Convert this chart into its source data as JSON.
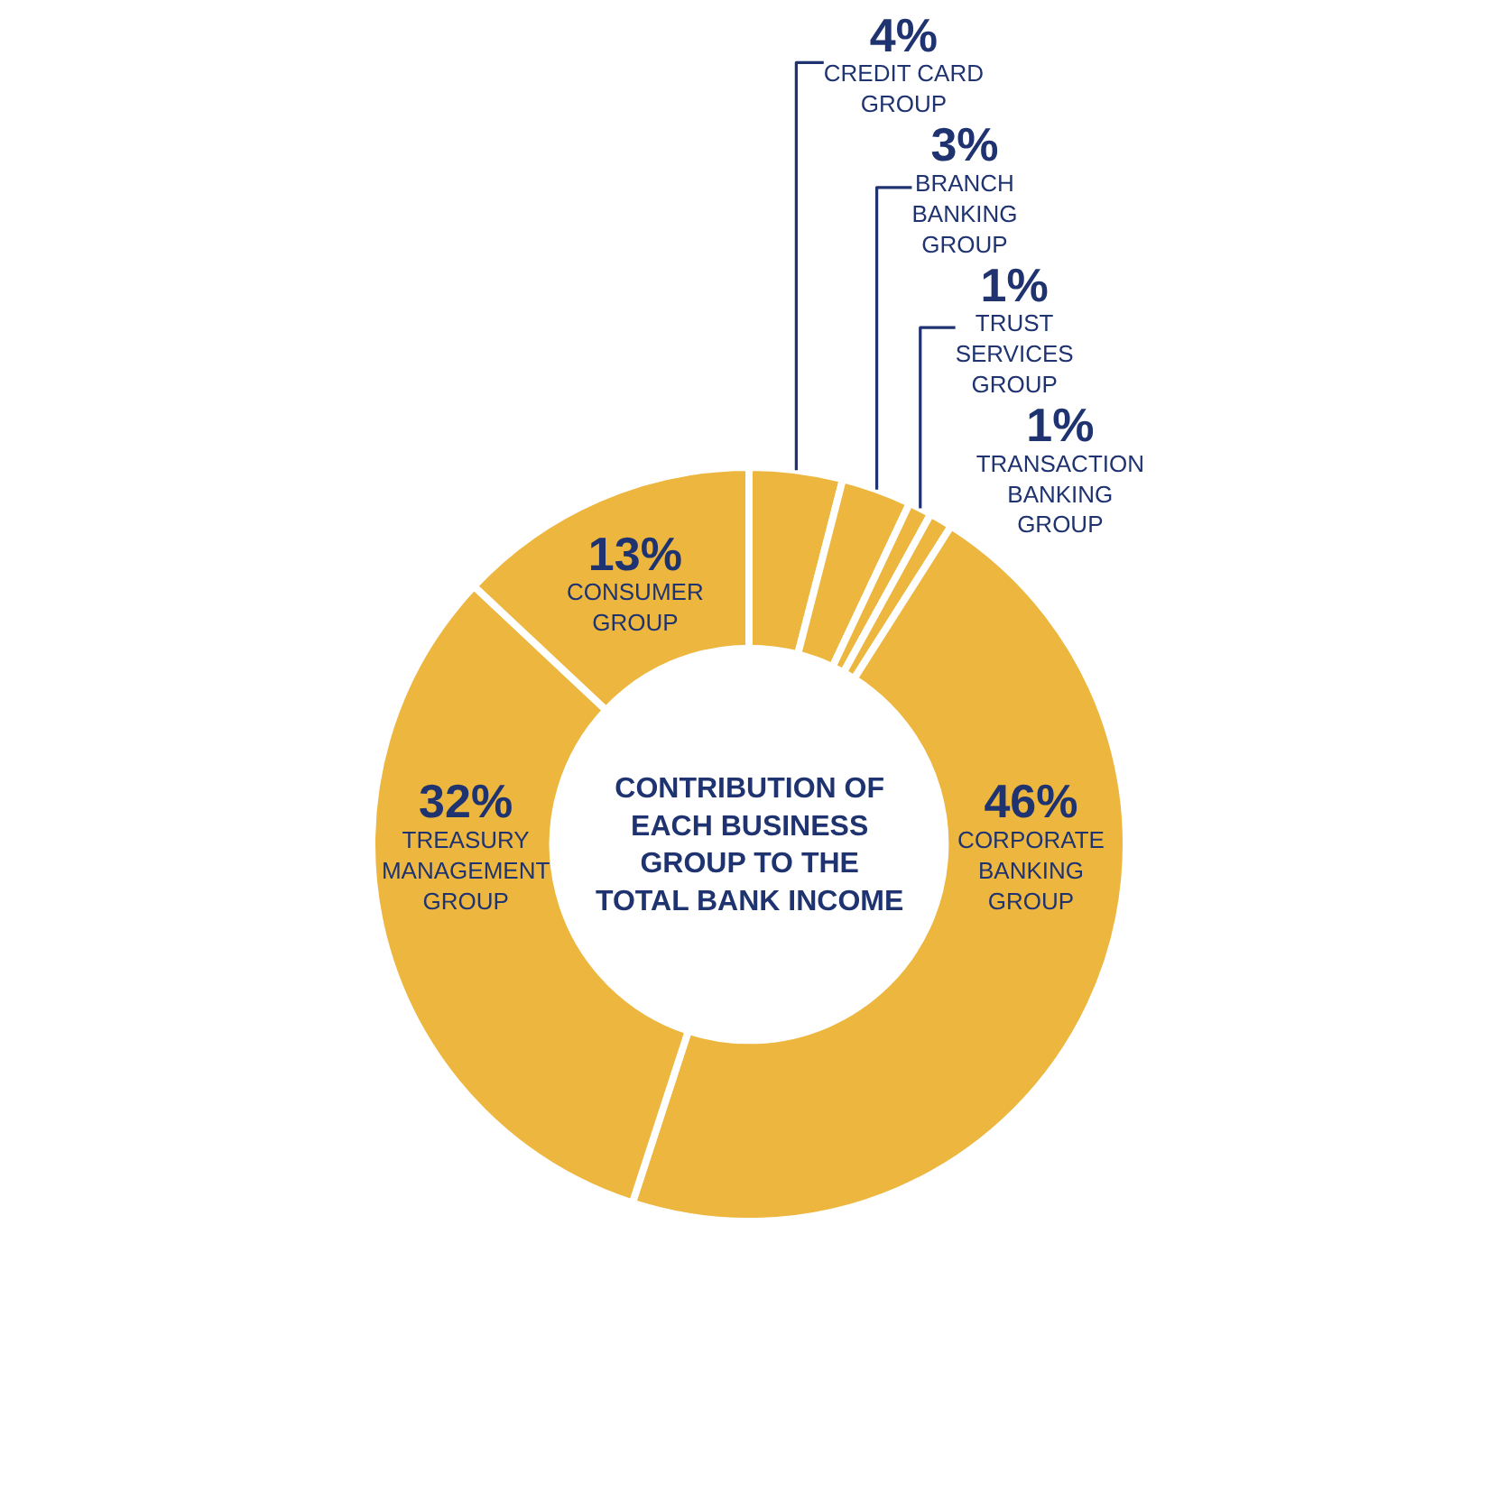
{
  "chart_data": {
    "type": "donut",
    "title": "CONTRIBUTION OF\nEACH BUSINESS\nGROUP TO THE\nTOTAL BANK INCOME",
    "categories": [
      "CREDIT CARD\nGROUP",
      "BRANCH\nBANKING\nGROUP",
      "TRUST\nSERVICES\nGROUP",
      "TRANSACTION\nBANKING\nGROUP",
      "CORPORATE\nBANKING\nGROUP",
      "TREASURY\nMANAGEMENT\nGROUP",
      "CONSUMER\nGROUP"
    ],
    "values": [
      4,
      3,
      1,
      1,
      46,
      32,
      13
    ],
    "value_labels": [
      "4%",
      "3%",
      "1%",
      "1%",
      "46%",
      "32%",
      "13%"
    ],
    "colors": [
      "#ecb63f",
      "#ecb63f",
      "#ecb63f",
      "#ecb63f",
      "#ecb63f",
      "#ecb63f",
      "#ecb63f"
    ]
  }
}
